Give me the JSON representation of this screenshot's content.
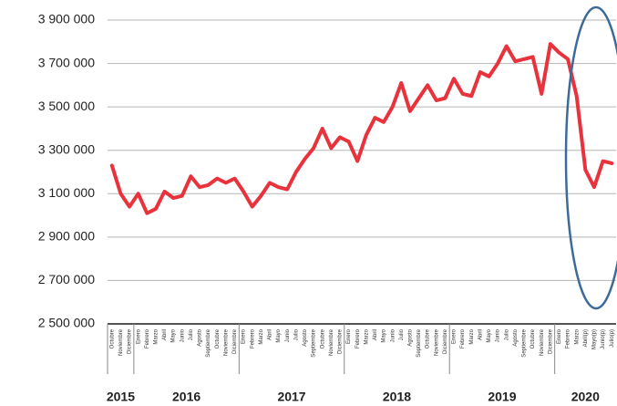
{
  "chart_data": {
    "type": "line",
    "categories": [
      "Octubre",
      "Noviembre",
      "Diciembre",
      "Enero",
      "Febrero",
      "Marzo",
      "Abril",
      "Mayo",
      "Junio",
      "Julio",
      "Agosto",
      "Septiembre",
      "Octubre",
      "Noviembre",
      "Diciembre",
      "Enero",
      "Febrero",
      "Marzo",
      "Abril",
      "Mayo",
      "Junio",
      "Julio",
      "Agosto",
      "Septiembre",
      "Octubre",
      "Noviembre",
      "Diciembre",
      "Enero",
      "Febrero",
      "Marzo",
      "Abril",
      "Mayo",
      "Junio",
      "Julio",
      "Agosto",
      "Septiembre",
      "Octubre",
      "Noviembre",
      "Diciembre",
      "Enero",
      "Febrero",
      "Marzo",
      "Abril",
      "Mayo",
      "Junio",
      "Julio",
      "Agosto",
      "Septiembre",
      "Octubre",
      "Noviembre",
      "Diciembre",
      "Enero",
      "Febrero",
      "Marzo",
      "Abril(p)",
      "Mayo(p)",
      "Junio(p)",
      "Julio(p)"
    ],
    "year_labels": [
      "2015",
      "2016",
      "2017",
      "2018",
      "2019",
      "2020"
    ],
    "values": [
      3230000,
      3100000,
      3040000,
      3100000,
      3010000,
      3030000,
      3110000,
      3080000,
      3090000,
      3180000,
      3130000,
      3140000,
      3170000,
      3150000,
      3170000,
      3110000,
      3040000,
      3090000,
      3150000,
      3130000,
      3120000,
      3200000,
      3260000,
      3310000,
      3400000,
      3310000,
      3360000,
      3340000,
      3250000,
      3370000,
      3450000,
      3430000,
      3500000,
      3610000,
      3480000,
      3540000,
      3600000,
      3530000,
      3540000,
      3630000,
      3560000,
      3550000,
      3660000,
      3640000,
      3700000,
      3780000,
      3710000,
      3720000,
      3730000,
      3560000,
      3790000,
      3750000,
      3720000,
      3550000,
      3210000,
      3130000,
      3250000,
      3240000
    ],
    "color": "#e8323c",
    "ylim": [
      2500000,
      3900000
    ],
    "yticks": [
      {
        "value": 2500000,
        "label": "2 500 000"
      },
      {
        "value": 2700000,
        "label": "2 700 000"
      },
      {
        "value": 2900000,
        "label": "2 900 000"
      },
      {
        "value": 3100000,
        "label": "3 100 000"
      },
      {
        "value": 3300000,
        "label": "3 300 000"
      },
      {
        "value": 3500000,
        "label": "3 500 000"
      },
      {
        "value": 3700000,
        "label": "3 700 000"
      },
      {
        "value": 3900000,
        "label": "3 900 000"
      }
    ],
    "grid": true
  }
}
